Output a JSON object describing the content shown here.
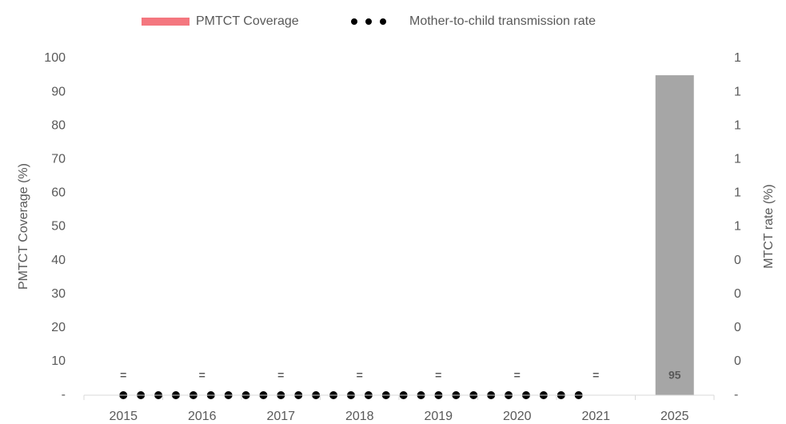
{
  "chart_data": {
    "type": "bar",
    "categories": [
      "2015",
      "2016",
      "2017",
      "2018",
      "2019",
      "2020",
      "2021",
      "2025"
    ],
    "series": [
      {
        "name": "PMTCT Coverage",
        "color": "#f4777f",
        "values": [
          0,
          0,
          0,
          0,
          0,
          0,
          0,
          95
        ],
        "value_labels": [
          "=",
          "=",
          "=",
          "=",
          "=",
          "=",
          "=",
          "95"
        ],
        "bar_colors": [
          "#f4777f",
          "#f4777f",
          "#f4777f",
          "#f4777f",
          "#f4777f",
          "#f4777f",
          "#f4777f",
          "#a6a6a6"
        ]
      },
      {
        "name": "Mother-to-child transmission rate",
        "color": "#000000",
        "type": "line",
        "axis": "y2",
        "values": [
          0,
          0,
          0,
          0,
          0,
          0,
          0,
          null
        ]
      }
    ],
    "ylabel": "PMTCT Coverage (%)",
    "y2label": "MTCT rate (%)",
    "ylim": [
      0,
      100
    ],
    "yticks": [
      {
        "value": 0,
        "label": "-"
      },
      10,
      20,
      30,
      40,
      50,
      60,
      70,
      80,
      90,
      100
    ],
    "y2lim": [
      0,
      1
    ],
    "y2ticks": [
      {
        "value": 0,
        "label": "-"
      },
      {
        "value": 0.1,
        "label": "0"
      },
      {
        "value": 0.2,
        "label": "0"
      },
      {
        "value": 0.3,
        "label": "0"
      },
      {
        "value": 0.4,
        "label": "0"
      },
      {
        "value": 0.5,
        "label": "1"
      },
      {
        "value": 0.6,
        "label": "1"
      },
      {
        "value": 0.7,
        "label": "1"
      },
      {
        "value": 0.8,
        "label": "1"
      },
      {
        "value": 0.9,
        "label": "1"
      },
      {
        "value": 1,
        "label": "1"
      }
    ],
    "grid": false,
    "legend": "top"
  }
}
